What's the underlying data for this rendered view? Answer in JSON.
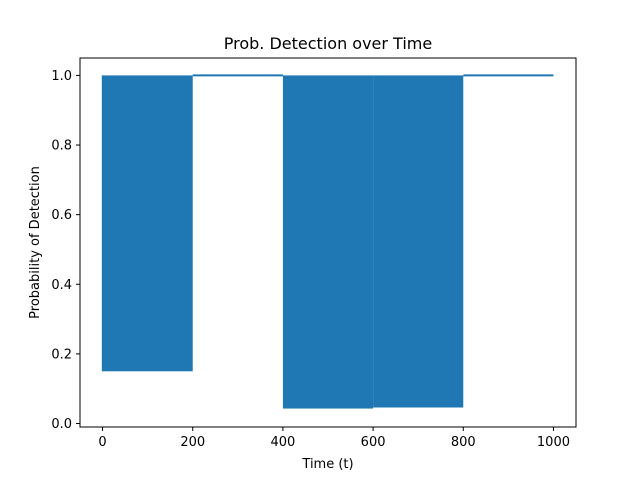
{
  "chart_data": {
    "type": "line",
    "title": "Prob. Detection over Time",
    "xlabel": "Time (t)",
    "ylabel": "Probability of Detection",
    "xlim": [
      -50,
      1050
    ],
    "ylim": [
      -0.01,
      1.05
    ],
    "xticks": [
      0,
      200,
      400,
      600,
      800,
      1000
    ],
    "xtick_labels": [
      "0",
      "200",
      "400",
      "600",
      "800",
      "1000"
    ],
    "yticks": [
      0.0,
      0.2,
      0.4,
      0.6,
      0.8,
      1.0
    ],
    "ytick_labels": [
      "0.0",
      "0.2",
      "0.4",
      "0.6",
      "0.8",
      "1.0"
    ],
    "grid": false,
    "legend": "none",
    "series_color": "#1f77b4",
    "series": [
      {
        "segments": [
          {
            "x_start": 0,
            "x_end": 200,
            "behavior": "oscillating",
            "y_min": 0.15,
            "y_max": 1.0
          },
          {
            "x_start": 200,
            "x_end": 400,
            "behavior": "constant",
            "y_min": 1.0,
            "y_max": 1.0
          },
          {
            "x_start": 400,
            "x_end": 600,
            "behavior": "oscillating",
            "y_min": 0.043,
            "y_max": 1.0
          },
          {
            "x_start": 600,
            "x_end": 800,
            "behavior": "oscillating",
            "y_min": 0.046,
            "y_max": 1.0
          },
          {
            "x_start": 800,
            "x_end": 1000,
            "behavior": "constant",
            "y_min": 1.0,
            "y_max": 1.0
          }
        ]
      }
    ]
  }
}
